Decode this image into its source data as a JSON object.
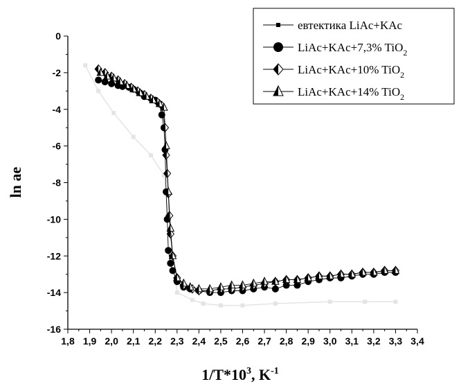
{
  "chart_data": {
    "type": "line",
    "xlabel": {
      "main": "1/T*10",
      "sup1": "3",
      "mid": ", K",
      "sup2": "-1"
    },
    "ylabel": "ln ae",
    "xlim": [
      1.8,
      3.4
    ],
    "ylim": [
      -16,
      0
    ],
    "x_ticks": [
      "1,8",
      "1,9",
      "2,0",
      "2,1",
      "2,2",
      "2,3",
      "2,4",
      "2,5",
      "2,6",
      "2,7",
      "2,8",
      "2,9",
      "3,0",
      "3,1",
      "3,2",
      "3,3",
      "3,4"
    ],
    "y_ticks": [
      "0",
      "-2",
      "-4",
      "-6",
      "-8",
      "-10",
      "-12",
      "-14",
      "-16"
    ],
    "legend_position": "top-right",
    "series": [
      {
        "name": "евтектика LiAc+KAc",
        "marker": "square",
        "color": "#e4e4e4",
        "x": [
          1.88,
          1.94,
          2.01,
          2.1,
          2.18,
          2.24,
          2.3,
          2.37,
          2.42,
          2.5,
          2.6,
          2.75,
          3.0,
          3.16,
          3.3
        ],
        "y": [
          -1.6,
          -3.0,
          -4.2,
          -5.5,
          -6.5,
          -7.6,
          -14.0,
          -14.4,
          -14.6,
          -14.7,
          -14.7,
          -14.6,
          -14.5,
          -14.5,
          -14.5
        ]
      },
      {
        "name": "LiAc+KAc+7,3% TiO",
        "sub": "2",
        "marker": "circle",
        "color": "#000000",
        "x": [
          1.94,
          1.97,
          2.0,
          2.03,
          2.05,
          2.08,
          2.1,
          2.13,
          2.15,
          2.18,
          2.2,
          2.22,
          2.23,
          2.24,
          2.245,
          2.25,
          2.255,
          2.26,
          2.27,
          2.28,
          2.3,
          2.33,
          2.36,
          2.4,
          2.45,
          2.5,
          2.55,
          2.6,
          2.65,
          2.7,
          2.75,
          2.8,
          2.85,
          2.9,
          2.95,
          3.0,
          3.05,
          3.1,
          3.15,
          3.2,
          3.25,
          3.3
        ],
        "y": [
          -2.4,
          -2.5,
          -2.6,
          -2.7,
          -2.75,
          -2.8,
          -2.9,
          -3.1,
          -3.3,
          -3.4,
          -3.5,
          -3.7,
          -4.3,
          -5.0,
          -6.2,
          -8.5,
          -10.0,
          -11.7,
          -12.4,
          -12.8,
          -13.4,
          -13.7,
          -13.8,
          -13.9,
          -14.0,
          -14.0,
          -13.9,
          -13.9,
          -13.8,
          -13.7,
          -13.8,
          -13.6,
          -13.6,
          -13.4,
          -13.3,
          -13.2,
          -13.2,
          -13.1,
          -13.0,
          -13.0,
          -12.9,
          -12.9
        ]
      },
      {
        "name": "LiAc+KAc+10% TiO",
        "sub": "2",
        "marker": "diamond",
        "color": "#000000",
        "x": [
          1.94,
          1.97,
          2.0,
          2.03,
          2.06,
          2.09,
          2.12,
          2.15,
          2.18,
          2.21,
          2.23,
          2.245,
          2.25,
          2.255,
          2.26,
          2.265,
          2.27,
          2.28,
          2.3,
          2.33,
          2.37,
          2.4,
          2.45,
          2.5,
          2.55,
          2.6,
          2.65,
          2.7,
          2.75,
          2.8,
          2.85,
          2.9,
          2.95,
          3.0,
          3.05,
          3.1,
          3.15,
          3.2,
          3.25,
          3.3
        ],
        "y": [
          -1.8,
          -2.0,
          -2.2,
          -2.4,
          -2.6,
          -2.8,
          -3.0,
          -3.2,
          -3.4,
          -3.6,
          -3.8,
          -5.0,
          -6.5,
          -7.5,
          -8.6,
          -9.8,
          -10.8,
          -12.0,
          -13.2,
          -13.6,
          -13.8,
          -13.9,
          -13.9,
          -13.8,
          -13.8,
          -13.7,
          -13.6,
          -13.5,
          -13.4,
          -13.3,
          -13.3,
          -13.2,
          -13.1,
          -13.1,
          -13.0,
          -13.0,
          -12.9,
          -12.9,
          -12.8,
          -12.8
        ]
      },
      {
        "name": "LiAc+KAc+14% TiO",
        "sub": "2",
        "marker": "triangle",
        "color": "#000000",
        "x": [
          1.95,
          1.98,
          2.01,
          2.04,
          2.07,
          2.1,
          2.13,
          2.16,
          2.19,
          2.22,
          2.24,
          2.25,
          2.26,
          2.27,
          2.28,
          2.3,
          2.33,
          2.36,
          2.4,
          2.45,
          2.5,
          2.55,
          2.6,
          2.65,
          2.7,
          2.75,
          2.8,
          2.85,
          2.9,
          2.95,
          3.0,
          3.05,
          3.1,
          3.15,
          3.2,
          3.25,
          3.3
        ],
        "y": [
          -2.0,
          -2.2,
          -2.3,
          -2.5,
          -2.7,
          -2.9,
          -3.1,
          -3.3,
          -3.5,
          -3.7,
          -3.9,
          -6.0,
          -8.5,
          -10.5,
          -12.0,
          -13.2,
          -13.5,
          -13.7,
          -13.8,
          -13.8,
          -13.7,
          -13.6,
          -13.6,
          -13.5,
          -13.4,
          -13.4,
          -13.3,
          -13.3,
          -13.2,
          -13.1,
          -13.1,
          -13.0,
          -13.0,
          -12.9,
          -12.9,
          -12.8,
          -12.8
        ]
      }
    ]
  }
}
